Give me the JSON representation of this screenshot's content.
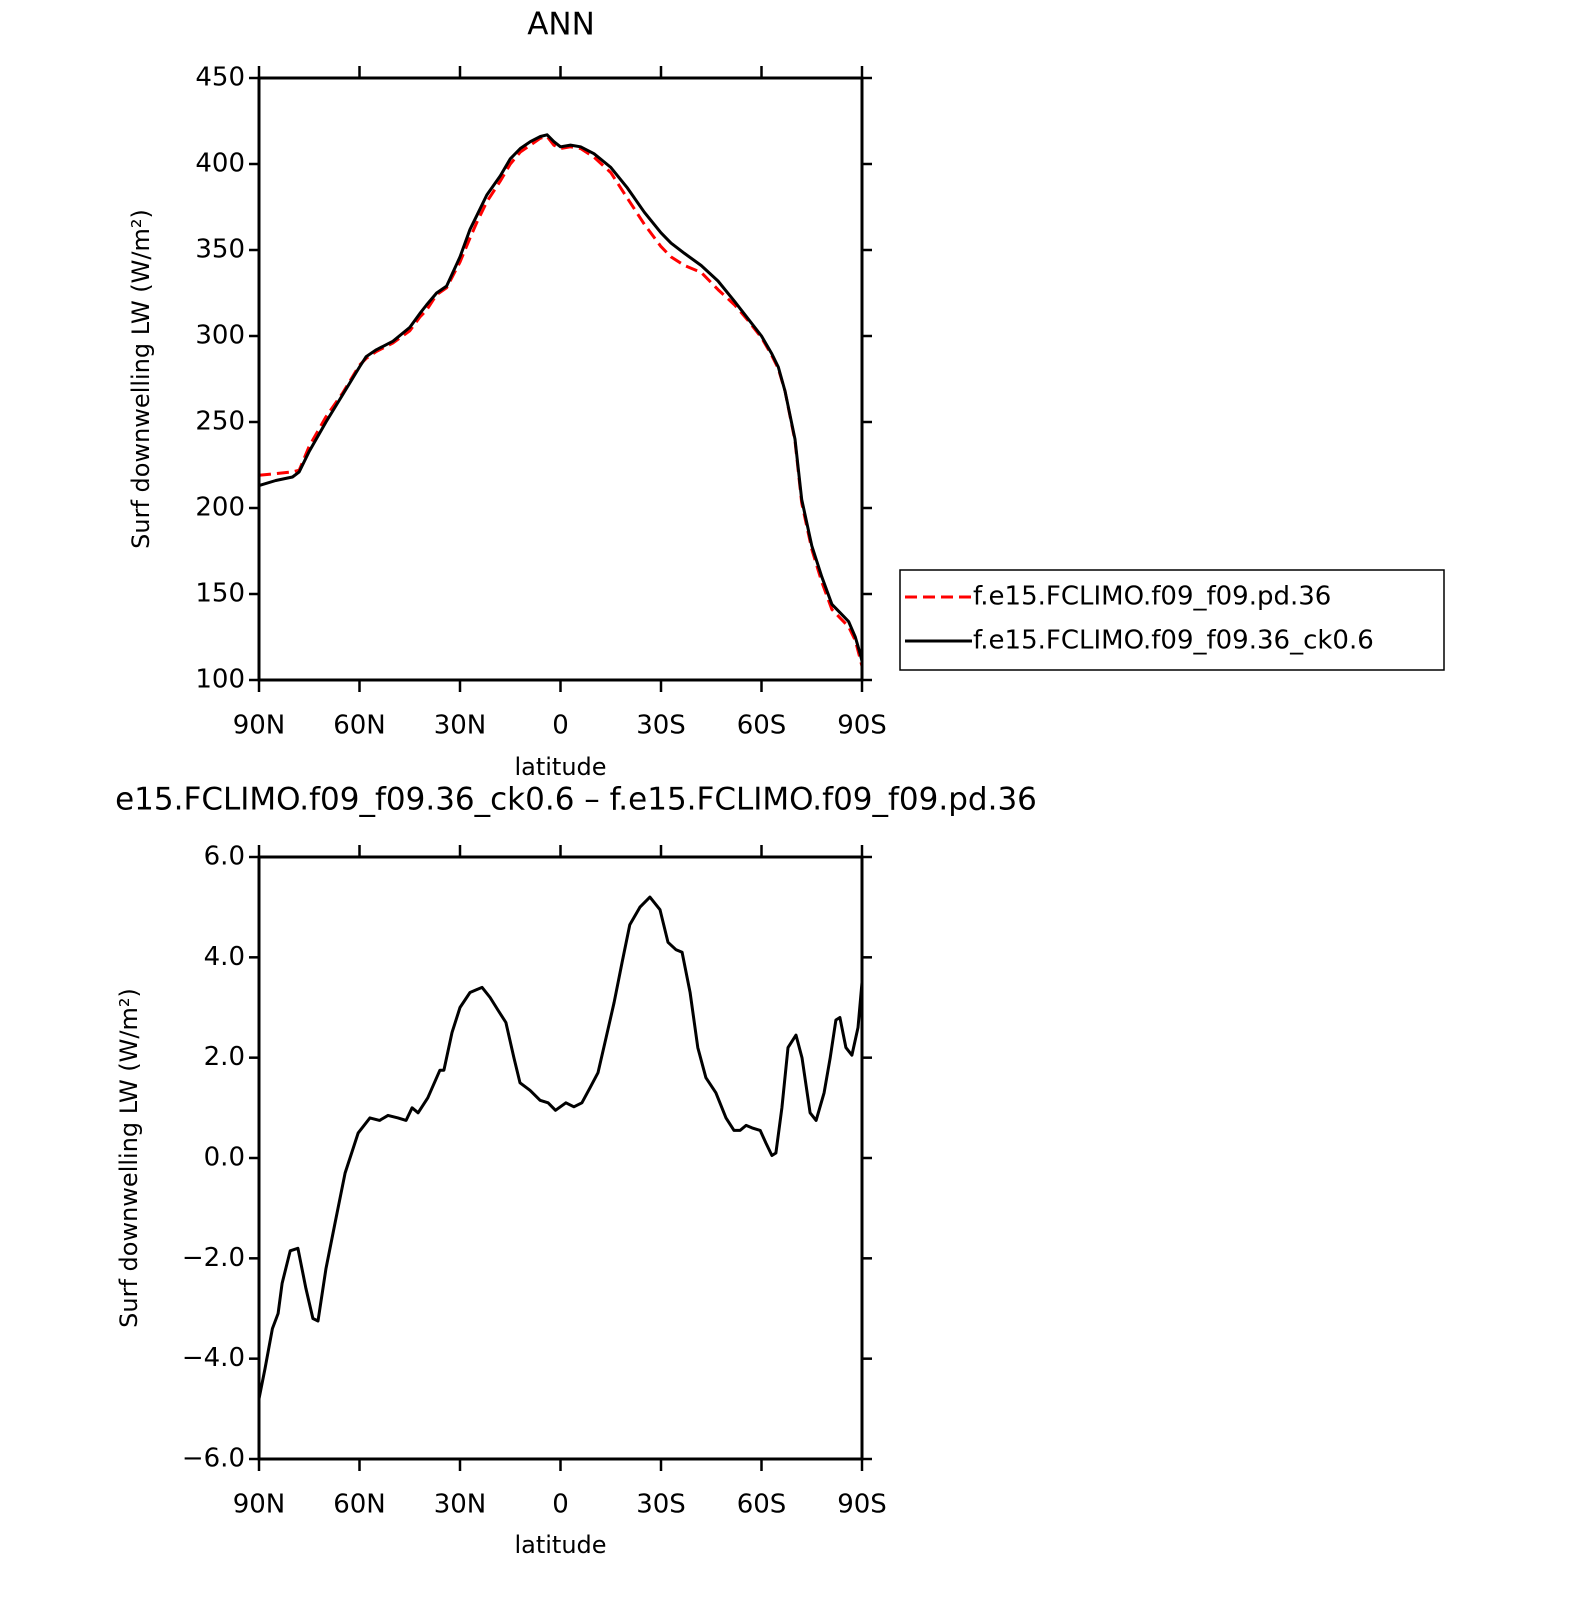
{
  "chart_data": [
    {
      "type": "line",
      "title": "ANN",
      "xlabel": "latitude",
      "ylabel": "Surf downwelling LW (W/m²)",
      "x": [
        90,
        85,
        80,
        78,
        75,
        70,
        65,
        60,
        58,
        55,
        50,
        45,
        42,
        40,
        37,
        34,
        30,
        27,
        25,
        22,
        18,
        15,
        12,
        9,
        6,
        4,
        2,
        0,
        -3,
        -6,
        -10,
        -15,
        -20,
        -25,
        -30,
        -33,
        -37,
        -42,
        -47,
        -52,
        -56,
        -60,
        -63,
        -65,
        -67,
        -70,
        -72,
        -75,
        -78,
        -81,
        -84,
        -86,
        -88,
        -89.5,
        -90
      ],
      "series": [
        {
          "name": "f.e15.FCLIMO.f09_f09.pd.36",
          "color": "#ff0000",
          "linestyle": "dashed",
          "values": [
            219,
            220,
            221,
            222,
            236,
            253,
            267,
            283,
            287,
            291,
            296,
            303,
            311,
            315,
            324,
            328,
            343,
            357,
            366,
            378,
            390,
            400,
            407,
            411,
            415,
            416,
            411,
            409,
            410,
            409,
            404,
            395,
            380,
            365,
            352,
            346,
            341,
            337,
            327,
            318,
            309,
            299,
            289,
            281,
            268,
            239,
            203,
            176,
            157,
            141,
            135,
            131,
            123,
            112,
            108
          ]
        },
        {
          "name": "f.e15.FCLIMO.f09_f09.36_ck0.6",
          "color": "#000000",
          "linestyle": "solid",
          "values": [
            213,
            216,
            218,
            221,
            233,
            250,
            266,
            282,
            288,
            292,
            297,
            305,
            313,
            318,
            325,
            329,
            346,
            362,
            370,
            382,
            393,
            403,
            409,
            413,
            416,
            417,
            413,
            410,
            411,
            410,
            406,
            398,
            386,
            372,
            360,
            354,
            348,
            341,
            332,
            320,
            310,
            300,
            290,
            282,
            268,
            240,
            205,
            178,
            160,
            144,
            138,
            134,
            125,
            115,
            111
          ]
        }
      ],
      "xlim": [
        90,
        -90
      ],
      "xticks": [
        {
          "value": 90,
          "label": "90N"
        },
        {
          "value": 60,
          "label": "60N"
        },
        {
          "value": 30,
          "label": "30N"
        },
        0,
        {
          "value": -30,
          "label": "30S"
        },
        {
          "value": -60,
          "label": "60S"
        },
        {
          "value": -90,
          "label": "90S"
        }
      ],
      "ylim": [
        100,
        450
      ],
      "yticks": [
        100,
        150,
        200,
        250,
        300,
        350,
        400,
        450
      ],
      "legend": "right"
    },
    {
      "type": "line",
      "title": "e15.FCLIMO.f09_f09.36_ck0.6 – f.e15.FCLIMO.f09_f09.pd.36",
      "xlabel": "latitude",
      "ylabel": "Surf downwelling LW (W/m²)",
      "color": "#000000",
      "x": [
        90,
        88.2,
        86,
        84.3,
        83.1,
        80.7,
        78.4,
        76,
        73.9,
        72.4,
        70,
        67.3,
        64.3,
        60.4,
        56.9,
        54,
        51.5,
        48.5,
        46.1,
        44.3,
        42.5,
        39.6,
        36,
        34.8,
        32.4,
        30,
        27,
        25.2,
        23.4,
        21,
        18.7,
        16.3,
        13.9,
        12.1,
        9.1,
        6.1,
        3.7,
        1.5,
        -1.6,
        -4,
        -6.4,
        -8.8,
        -11.2,
        -13.6,
        -16,
        -18.4,
        -20.7,
        -23.7,
        -26.7,
        -29.7,
        -32.1,
        -34.5,
        -36.3,
        -38.7,
        -41,
        -43.4,
        -46.4,
        -49.4,
        -51.8,
        -53.6,
        -55.4,
        -57.2,
        -59.6,
        -61.3,
        -63.1,
        -64.3,
        -66.1,
        -67.9,
        -70.3,
        -72.1,
        -74.5,
        -76.3,
        -78.7,
        -80.5,
        -82.2,
        -83.4,
        -85.2,
        -87,
        -88.8,
        -90
      ],
      "values": [
        -4.8,
        -4.2,
        -3.4,
        -3.1,
        -2.5,
        -1.85,
        -1.8,
        -2.6,
        -3.2,
        -3.25,
        -2.2,
        -1.3,
        -0.3,
        0.5,
        0.8,
        0.75,
        0.85,
        0.8,
        0.75,
        1.0,
        0.9,
        1.2,
        1.75,
        1.75,
        2.5,
        3.0,
        3.3,
        3.35,
        3.4,
        3.2,
        2.95,
        2.7,
        2.0,
        1.5,
        1.35,
        1.15,
        1.1,
        0.95,
        1.1,
        1.02,
        1.1,
        1.4,
        1.7,
        2.4,
        3.1,
        3.9,
        4.65,
        5.0,
        5.2,
        4.95,
        4.3,
        4.15,
        4.1,
        3.3,
        2.2,
        1.6,
        1.3,
        0.8,
        0.55,
        0.55,
        0.65,
        0.6,
        0.55,
        0.3,
        0.05,
        0.1,
        1.0,
        2.2,
        2.45,
        2.0,
        0.9,
        0.75,
        1.3,
        2.0,
        2.75,
        2.8,
        2.2,
        2.05,
        2.6,
        3.5
      ],
      "xlim": [
        90,
        -90
      ],
      "xticks": [
        {
          "value": 90,
          "label": "90N"
        },
        {
          "value": 60,
          "label": "60N"
        },
        {
          "value": 30,
          "label": "30N"
        },
        0,
        {
          "value": -30,
          "label": "30S"
        },
        {
          "value": -60,
          "label": "60S"
        },
        {
          "value": -90,
          "label": "90S"
        }
      ],
      "ylim": [
        -6,
        6
      ],
      "yticks": [
        {
          "value": -6,
          "label": "−6.0"
        },
        {
          "value": -4,
          "label": "−4.0"
        },
        {
          "value": -2,
          "label": "−2.0"
        },
        {
          "value": 0,
          "label": "0.0"
        },
        {
          "value": 2,
          "label": "2.0"
        },
        {
          "value": 4,
          "label": "4.0"
        },
        {
          "value": 6,
          "label": "6.0"
        }
      ]
    }
  ]
}
